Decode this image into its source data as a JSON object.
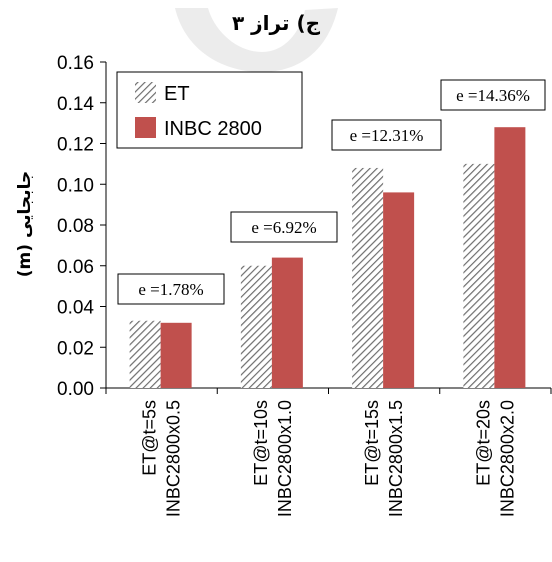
{
  "chart_data": {
    "type": "bar",
    "title": "ج) تراز ۳",
    "ylabel": "جابجایی (m)",
    "xlabel": "",
    "ylim": [
      0,
      0.16
    ],
    "yticks": [
      "0.00",
      "0.02",
      "0.04",
      "0.06",
      "0.08",
      "0.10",
      "0.12",
      "0.14",
      "0.16"
    ],
    "categories": [
      [
        "ET@t=5s",
        "INBC2800x0.5"
      ],
      [
        "ET@t=10s",
        "INBC2800x1.0"
      ],
      [
        "ET@t=15s",
        "INBC2800x1.5"
      ],
      [
        "ET@t=20s",
        "INBC2800x2.0"
      ]
    ],
    "series": [
      {
        "name": "ET",
        "values": [
          0.033,
          0.06,
          0.108,
          0.11
        ],
        "color": "#9e9e9e",
        "pattern": "diagonal-hatch"
      },
      {
        "name": "INBC 2800",
        "values": [
          0.032,
          0.064,
          0.096,
          0.128
        ],
        "color": "#c0504d",
        "pattern": "solid"
      }
    ],
    "annotations": [
      "e =1.78%",
      "e =6.92%",
      "e =12.31%",
      "e =14.36%"
    ],
    "legend_position": "top-left",
    "grid": false
  }
}
